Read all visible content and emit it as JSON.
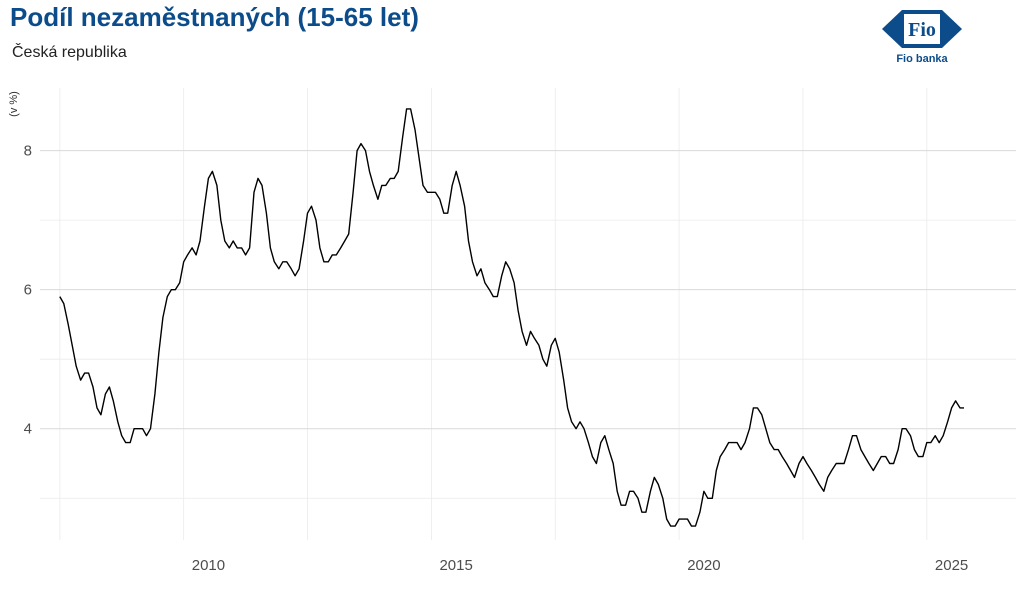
{
  "header": {
    "title": "Podíl nezaměstnaných (15-65 let)",
    "subtitle": "Česká republika"
  },
  "logo": {
    "mark_text": "Fio",
    "label": "Fio banka",
    "color": "#0c4c8a"
  },
  "chart_data": {
    "type": "line",
    "title": "Podíl nezaměstnaných (15-65 let)",
    "subtitle": "Česká republika",
    "xlabel": "",
    "ylabel": "(v %)",
    "xlim": [
      2006.6,
      2026.3
    ],
    "ylim": [
      2.4,
      8.9
    ],
    "x_ticks": [
      2010,
      2015,
      2020,
      2025
    ],
    "x_tick_labels": [
      "2010",
      "2015",
      "2020",
      "2025"
    ],
    "y_ticks": [
      4,
      6,
      8
    ],
    "y_tick_labels": [
      "4",
      "6",
      "8"
    ],
    "grid": true,
    "line_color": "#000000",
    "series": [
      {
        "x": [
          2007.0,
          2007.08,
          2007.17,
          2007.25,
          2007.33,
          2007.42,
          2007.5,
          2007.58,
          2007.67,
          2007.75,
          2007.83,
          2007.92,
          2008.0,
          2008.08,
          2008.17,
          2008.25,
          2008.33,
          2008.42,
          2008.5,
          2008.58,
          2008.67,
          2008.75,
          2008.83,
          2008.92,
          2009.0,
          2009.08,
          2009.17,
          2009.25,
          2009.33,
          2009.42,
          2009.5,
          2009.58,
          2009.67,
          2009.75,
          2009.83,
          2009.92,
          2010.0,
          2010.08,
          2010.17,
          2010.25,
          2010.33,
          2010.42,
          2010.5,
          2010.58,
          2010.67,
          2010.75,
          2010.83,
          2010.92,
          2011.0,
          2011.08,
          2011.17,
          2011.25,
          2011.33,
          2011.42,
          2011.5,
          2011.58,
          2011.67,
          2011.75,
          2011.83,
          2011.92,
          2012.0,
          2012.08,
          2012.17,
          2012.25,
          2012.33,
          2012.42,
          2012.5,
          2012.58,
          2012.67,
          2012.75,
          2012.83,
          2012.92,
          2013.0,
          2013.08,
          2013.17,
          2013.25,
          2013.33,
          2013.42,
          2013.5,
          2013.58,
          2013.67,
          2013.75,
          2013.83,
          2013.92,
          2014.0,
          2014.08,
          2014.17,
          2014.25,
          2014.33,
          2014.42,
          2014.5,
          2014.58,
          2014.67,
          2014.75,
          2014.83,
          2014.92,
          2015.0,
          2015.08,
          2015.17,
          2015.25,
          2015.33,
          2015.42,
          2015.5,
          2015.58,
          2015.67,
          2015.75,
          2015.83,
          2015.92,
          2016.0,
          2016.08,
          2016.17,
          2016.25,
          2016.33,
          2016.42,
          2016.5,
          2016.58,
          2016.67,
          2016.75,
          2016.83,
          2016.92,
          2017.0,
          2017.08,
          2017.17,
          2017.25,
          2017.33,
          2017.42,
          2017.5,
          2017.58,
          2017.67,
          2017.75,
          2017.83,
          2017.92,
          2018.0,
          2018.08,
          2018.17,
          2018.25,
          2018.33,
          2018.42,
          2018.5,
          2018.58,
          2018.67,
          2018.75,
          2018.83,
          2018.92,
          2019.0,
          2019.08,
          2019.17,
          2019.25,
          2019.33,
          2019.42,
          2019.5,
          2019.58,
          2019.67,
          2019.75,
          2019.83,
          2019.92,
          2020.0,
          2020.08,
          2020.17,
          2020.25,
          2020.33,
          2020.42,
          2020.5,
          2020.58,
          2020.67,
          2020.75,
          2020.83,
          2020.92,
          2021.0,
          2021.08,
          2021.17,
          2021.25,
          2021.33,
          2021.42,
          2021.5,
          2021.58,
          2021.67,
          2021.75,
          2021.83,
          2021.92,
          2022.0,
          2022.08,
          2022.17,
          2022.25,
          2022.33,
          2022.42,
          2022.5,
          2022.58,
          2022.67,
          2022.75,
          2022.83,
          2022.92,
          2023.0,
          2023.08,
          2023.17,
          2023.25,
          2023.33,
          2023.42,
          2023.5,
          2023.58,
          2023.67,
          2023.75,
          2023.83,
          2023.92,
          2024.0,
          2024.08,
          2024.17,
          2024.25,
          2024.33,
          2024.42,
          2024.5,
          2024.58,
          2024.67,
          2024.75,
          2024.83,
          2024.92,
          2025.0,
          2025.08,
          2025.17,
          2025.25
        ],
        "values": [
          5.9,
          5.8,
          5.5,
          5.2,
          4.9,
          4.7,
          4.8,
          4.8,
          4.6,
          4.3,
          4.2,
          4.5,
          4.6,
          4.4,
          4.1,
          3.9,
          3.8,
          3.8,
          4.0,
          4.0,
          4.0,
          3.9,
          4.0,
          4.5,
          5.1,
          5.6,
          5.9,
          6.0,
          6.0,
          6.1,
          6.4,
          6.5,
          6.6,
          6.5,
          6.7,
          7.2,
          7.6,
          7.7,
          7.5,
          7.0,
          6.7,
          6.6,
          6.7,
          6.6,
          6.6,
          6.5,
          6.6,
          7.4,
          7.6,
          7.5,
          7.1,
          6.6,
          6.4,
          6.3,
          6.4,
          6.4,
          6.3,
          6.2,
          6.3,
          6.7,
          7.1,
          7.2,
          7.0,
          6.6,
          6.4,
          6.4,
          6.5,
          6.5,
          6.6,
          6.7,
          6.8,
          7.4,
          8.0,
          8.1,
          8.0,
          7.7,
          7.5,
          7.3,
          7.5,
          7.5,
          7.6,
          7.6,
          7.7,
          8.2,
          8.6,
          8.6,
          8.3,
          7.9,
          7.5,
          7.4,
          7.4,
          7.4,
          7.3,
          7.1,
          7.1,
          7.5,
          7.7,
          7.5,
          7.2,
          6.7,
          6.4,
          6.2,
          6.3,
          6.1,
          6.0,
          5.9,
          5.9,
          6.2,
          6.4,
          6.3,
          6.1,
          5.7,
          5.4,
          5.2,
          5.4,
          5.3,
          5.2,
          5.0,
          4.9,
          5.2,
          5.3,
          5.1,
          4.7,
          4.3,
          4.1,
          4.0,
          4.1,
          4.0,
          3.8,
          3.6,
          3.5,
          3.8,
          3.9,
          3.7,
          3.5,
          3.1,
          2.9,
          2.9,
          3.1,
          3.1,
          3.0,
          2.8,
          2.8,
          3.1,
          3.3,
          3.2,
          3.0,
          2.7,
          2.6,
          2.6,
          2.7,
          2.7,
          2.7,
          2.6,
          2.6,
          2.8,
          3.1,
          3.0,
          3.0,
          3.4,
          3.6,
          3.7,
          3.8,
          3.8,
          3.8,
          3.7,
          3.8,
          4.0,
          4.3,
          4.3,
          4.2,
          4.0,
          3.8,
          3.7,
          3.7,
          3.6,
          3.5,
          3.4,
          3.3,
          3.5,
          3.6,
          3.5,
          3.4,
          3.3,
          3.2,
          3.1,
          3.3,
          3.4,
          3.5,
          3.5,
          3.5,
          3.7,
          3.9,
          3.9,
          3.7,
          3.6,
          3.5,
          3.4,
          3.5,
          3.6,
          3.6,
          3.5,
          3.5,
          3.7,
          4.0,
          4.0,
          3.9,
          3.7,
          3.6,
          3.6,
          3.8,
          3.8,
          3.9,
          3.8,
          3.9,
          4.1,
          4.3,
          4.4,
          4.3,
          4.3
        ]
      }
    ]
  }
}
